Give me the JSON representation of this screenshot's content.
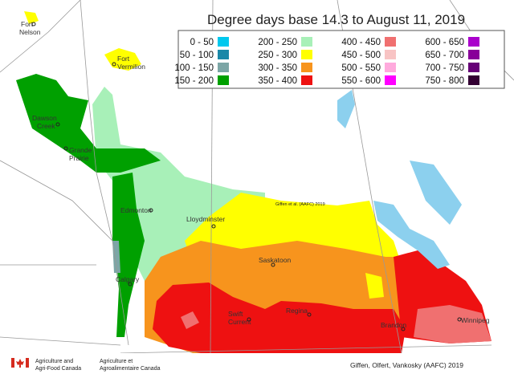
{
  "title": "Degree days base 14.3 to August 11, 2019",
  "legend": {
    "items": [
      {
        "label": "0 - 50",
        "color": "#00c8ee"
      },
      {
        "label": "50 - 100",
        "color": "#1a88a8"
      },
      {
        "label": "100 - 150",
        "color": "#7ca6a6"
      },
      {
        "label": "150 - 200",
        "color": "#00a000"
      },
      {
        "label": "200 - 250",
        "color": "#a8f0b8"
      },
      {
        "label": "250 - 300",
        "color": "#ffff00"
      },
      {
        "label": "300 - 350",
        "color": "#f7941d"
      },
      {
        "label": "350 - 400",
        "color": "#ee1111"
      },
      {
        "label": "400 - 450",
        "color": "#f07070"
      },
      {
        "label": "450 - 500",
        "color": "#f8c4c4"
      },
      {
        "label": "500 - 550",
        "color": "#ffaadd"
      },
      {
        "label": "550 - 600",
        "color": "#ff00ff"
      },
      {
        "label": "600 - 650",
        "color": "#aa00cc"
      },
      {
        "label": "650 - 700",
        "color": "#880099"
      },
      {
        "label": "700 - 750",
        "color": "#660077"
      },
      {
        "label": "750 - 800",
        "color": "#330033"
      }
    ]
  },
  "cities": [
    {
      "lines": [
        "Fort",
        "Nelson"
      ]
    },
    {
      "lines": [
        "Fort",
        "Vermilion"
      ]
    },
    {
      "lines": [
        "Dawson",
        "Creek"
      ]
    },
    {
      "lines": [
        "Grande",
        "Prairie"
      ]
    },
    {
      "lines": [
        "Edmonton"
      ]
    },
    {
      "lines": [
        "Lloydminster"
      ]
    },
    {
      "lines": [
        "Saskatoon"
      ]
    },
    {
      "lines": [
        "Calgary"
      ]
    },
    {
      "lines": [
        "Swift",
        "Current"
      ]
    },
    {
      "lines": [
        "Regina"
      ]
    },
    {
      "lines": [
        "Brandon"
      ]
    },
    {
      "lines": [
        "Winnipeg"
      ]
    }
  ],
  "watermark": "Giffen et al. (AAFC) 2019",
  "credit": "Giffen, Olfert, Vankosky (AAFC) 2019",
  "agency": {
    "english": [
      "Agriculture and",
      "Agri-Food Canada"
    ],
    "french": [
      "Agriculture et",
      "Agroalimentaire Canada"
    ]
  }
}
